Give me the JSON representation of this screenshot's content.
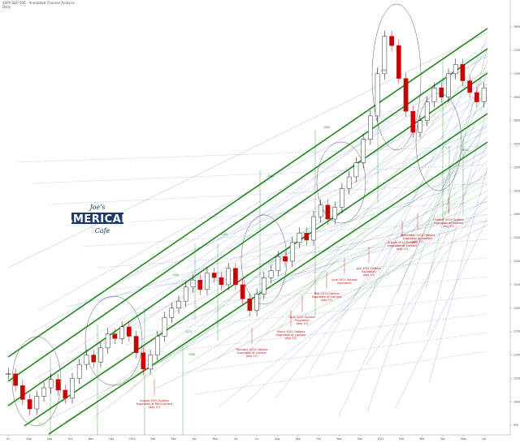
{
  "chart_data": {
    "type": "candlestick",
    "header": {
      "line1": "$SPX S&P 500 - Annotated Channel Analysis",
      "line2": "Daily"
    },
    "logo": {
      "line1": "Joe's",
      "line2": "AMERICAN",
      "line3": "Cafe"
    },
    "price_levels": [
      "1800",
      "1750",
      "1700",
      "1650",
      "1600",
      "1550",
      "1500",
      "1450",
      "1400",
      "1350",
      "1300",
      "1250",
      "1200",
      "1150",
      "1100",
      "1050",
      "1000",
      "950"
    ],
    "date_labels": [
      "Jul",
      "Aug",
      "Sep",
      "Oct",
      "Nov",
      "Dec",
      "2010",
      "Feb",
      "Mar",
      "Apr",
      "May",
      "Jun",
      "Jul",
      "Aug",
      "Sep",
      "Oct",
      "Nov",
      "Dec",
      "2011",
      "Feb",
      "Mar",
      "Apr",
      "May",
      "Jun"
    ],
    "annotations": [
      {
        "lines": [
          "August 2010 Options",
          "Expiration at Pain Contact",
          "(day 27)"
        ]
      },
      {
        "lines": [
          "February 2011 Options",
          "Expiration at Contact",
          "(day 27)"
        ]
      },
      {
        "lines": [
          "March 2011 Options",
          "Expiration at Contact",
          "(day 27)"
        ]
      },
      {
        "lines": [
          "April 2011 Options",
          "Expiration",
          "(day 27)"
        ]
      },
      {
        "lines": [
          "May 2011 Options",
          "Expiration at Contact",
          "(day 27)"
        ]
      },
      {
        "lines": [
          "June 2011 Options",
          "Expiration"
        ]
      },
      {
        "lines": [
          "July 2011 Options",
          "Expiration",
          "(day 27)"
        ]
      },
      {
        "lines": [
          "August 2011 Options",
          "Expiration at Contact",
          "(day 27)"
        ]
      },
      {
        "lines": [
          "September 2011 Options",
          "Expiration at Contact",
          "(day 27)"
        ]
      },
      {
        "lines": [
          "October 2011 Options",
          "Expiration at Contact",
          "(day 27)"
        ]
      }
    ],
    "series": [
      {
        "name": "Price",
        "values": [
          1060,
          1035,
          1005,
          985,
          1012,
          1030,
          1048,
          1025,
          1008,
          1050,
          1080,
          1100,
          1085,
          1115,
          1145,
          1135,
          1160,
          1140,
          1105,
          1070,
          1100,
          1140,
          1180,
          1200,
          1215,
          1245,
          1260,
          1240,
          1275,
          1265,
          1250,
          1285,
          1250,
          1220,
          1195,
          1230,
          1265,
          1280,
          1310,
          1300,
          1340,
          1360,
          1345,
          1395,
          1420,
          1390,
          1415,
          1455,
          1480,
          1510,
          1560,
          1610,
          1700,
          1780,
          1760,
          1690,
          1620,
          1575,
          1600,
          1640,
          1670,
          1650,
          1700,
          1720,
          1685,
          1660,
          1640,
          1670
        ]
      }
    ],
    "price_range": [
      940,
      1840
    ],
    "grid": false
  }
}
